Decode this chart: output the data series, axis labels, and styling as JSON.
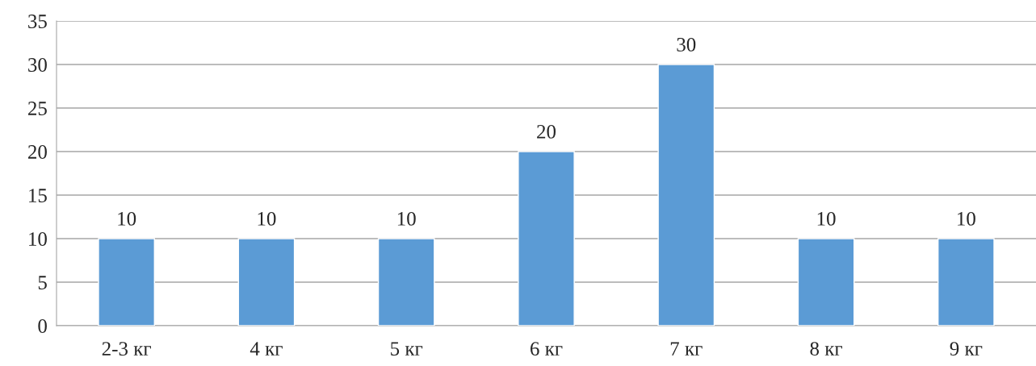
{
  "chart_data": {
    "type": "bar",
    "categories": [
      "2-3 кг",
      "4 кг",
      "5 кг",
      "6 кг",
      "7 кг",
      "8 кг",
      "9 кг"
    ],
    "values": [
      10,
      10,
      10,
      20,
      30,
      10,
      10
    ],
    "color": "#5b9bd5",
    "ylim": [
      0,
      35
    ],
    "yticks": [
      0,
      5,
      10,
      15,
      20,
      25,
      30,
      35
    ],
    "grid": "y",
    "data_labels": true,
    "legend": false
  }
}
